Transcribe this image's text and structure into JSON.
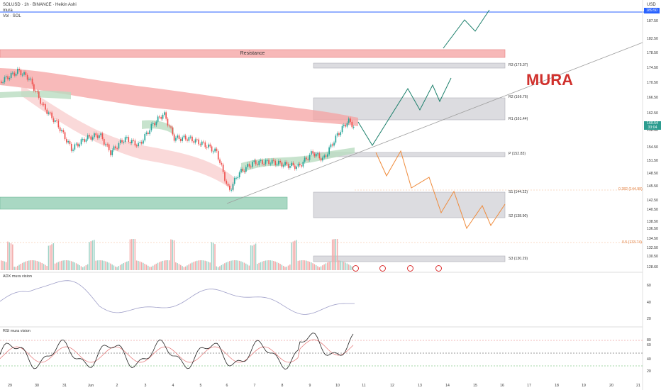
{
  "header": {
    "symbol_line": "SOLUSD · 1h · BINANCE · Heikin Ashi",
    "indicator1": "mura",
    "indicator2": "Vol · SOL",
    "currency": "USD"
  },
  "watermark": "MURA",
  "zones": {
    "resistance_label": "Resistance"
  },
  "price_axis": {
    "labels": [
      "187.50",
      "182.50",
      "178.50",
      "174.50",
      "170.50",
      "166.50",
      "162.50",
      "158.60",
      "154.50",
      "151.50",
      "148.50",
      "145.50",
      "142.50",
      "140.50",
      "138.50",
      "136.50",
      "134.50",
      "132.50",
      "130.50",
      "128.60"
    ],
    "top_price": "189.50",
    "current_price": "160.54",
    "current_price_sub": "33:04"
  },
  "pivots": {
    "R3": "R3 (175.37)",
    "R2": "R2 (166.76)",
    "R1": "R1 (161.44)",
    "P": "P (152.83)",
    "S1": "S1 (144.22)",
    "S2": "S2 (138.90)",
    "S3": "S3 (130.29)"
  },
  "fib": {
    "f1": "0.382 (144.99)",
    "f2": "0.5 (133.74)"
  },
  "adx": {
    "title": "ADX mura vision",
    "axis": [
      "60",
      "40",
      "20"
    ]
  },
  "rsi": {
    "title": "RSI mura vision",
    "axis": [
      "80",
      "60",
      "40",
      "20"
    ]
  },
  "date_axis": [
    "29",
    "30",
    "31",
    "Jun",
    "2",
    "3",
    "4",
    "5",
    "6",
    "7",
    "8",
    "9",
    "10",
    "11",
    "12",
    "13",
    "14",
    "15",
    "16",
    "17",
    "18",
    "19",
    "20",
    "21"
  ],
  "colors": {
    "up": "#26a69a",
    "down": "#ef5350",
    "forecast_up": "#1b7f6b",
    "forecast_down": "#ef8a3a",
    "resistance": "#f5b5b5",
    "support": "#a6d6c0",
    "pivot_zone": "#d9d9dc",
    "watermark": "#d0312d"
  }
}
